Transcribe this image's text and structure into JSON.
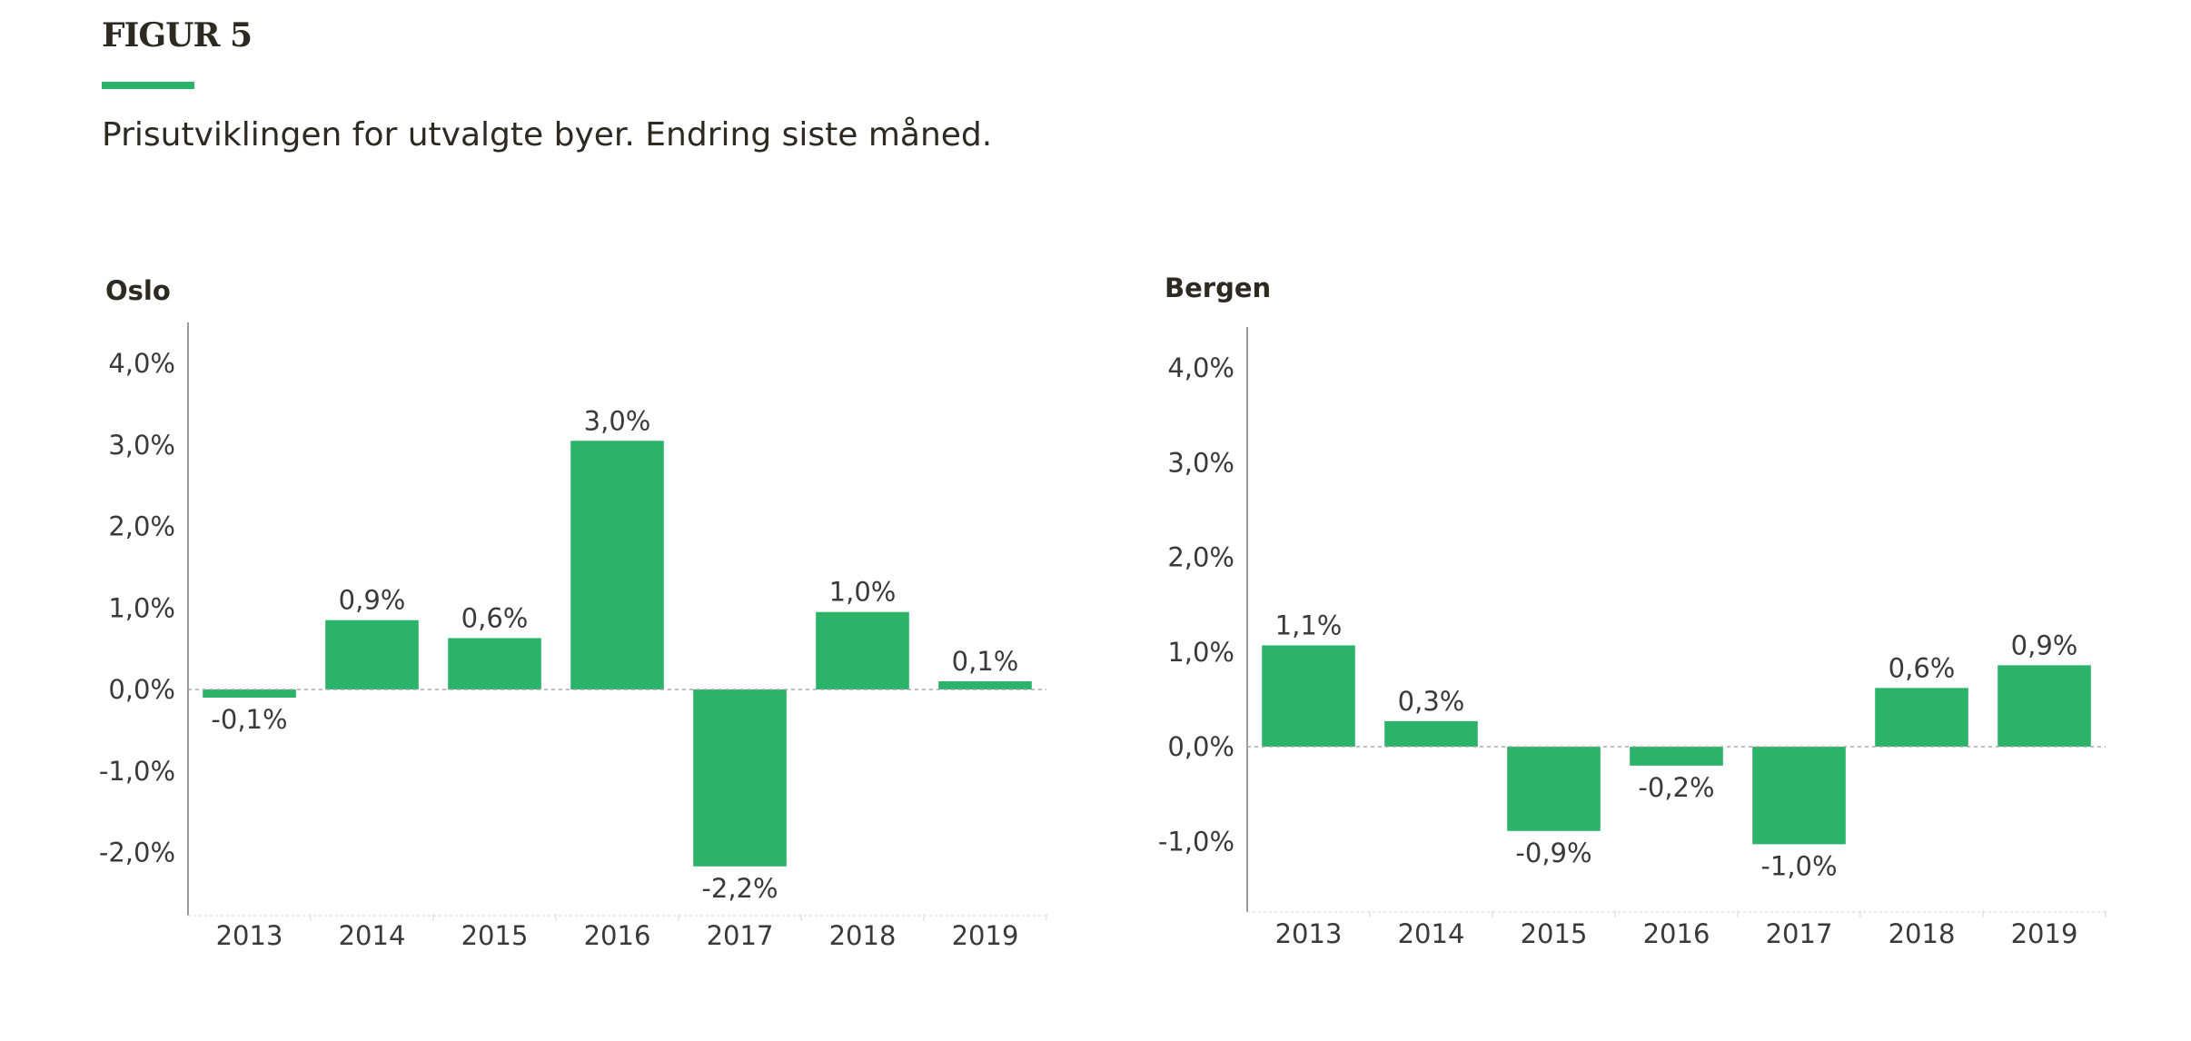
{
  "figure": {
    "label": "FIGUR 5",
    "subtitle": "Prisutviklingen for utvalgte byer. Endring siste måned.",
    "accent_color": "#2bb36a",
    "bar_color": "#2bb36a"
  },
  "chart_data": [
    {
      "type": "bar",
      "title": "Oslo",
      "categories": [
        "2013",
        "2014",
        "2015",
        "2016",
        "2017",
        "2018",
        "2019"
      ],
      "values": [
        -0.1,
        0.85,
        0.63,
        3.05,
        -2.17,
        0.95,
        0.1
      ],
      "data_labels": [
        "-0,1%",
        "0,9%",
        "0,6%",
        "3,0%",
        "-2,2%",
        "1,0%",
        "0,1%"
      ],
      "yticks": [
        "4,0%",
        "3,0%",
        "2,0%",
        "1,0%",
        "0,0%",
        "-1,0%",
        "-2,0%"
      ],
      "ytick_values": [
        4,
        3,
        2,
        1,
        0,
        -1,
        -2
      ],
      "ylim": [
        -2.75,
        4.5
      ],
      "grid": false,
      "zero_line": "dotted"
    },
    {
      "type": "bar",
      "title": "Bergen",
      "categories": [
        "2013",
        "2014",
        "2015",
        "2016",
        "2017",
        "2018",
        "2019"
      ],
      "values": [
        1.07,
        0.27,
        -0.89,
        -0.2,
        -1.03,
        0.62,
        0.86
      ],
      "data_labels": [
        "1,1%",
        "0,3%",
        "-0,9%",
        "-0,2%",
        "-1,0%",
        "0,6%",
        "0,9%"
      ],
      "yticks": [
        "4,0%",
        "3,0%",
        "2,0%",
        "1,0%",
        "0,0%",
        "-1,0%"
      ],
      "ytick_values": [
        4,
        3,
        2,
        1,
        0,
        -1
      ],
      "ylim": [
        -1.75,
        4.5
      ],
      "grid": false,
      "zero_line": "dotted"
    }
  ]
}
